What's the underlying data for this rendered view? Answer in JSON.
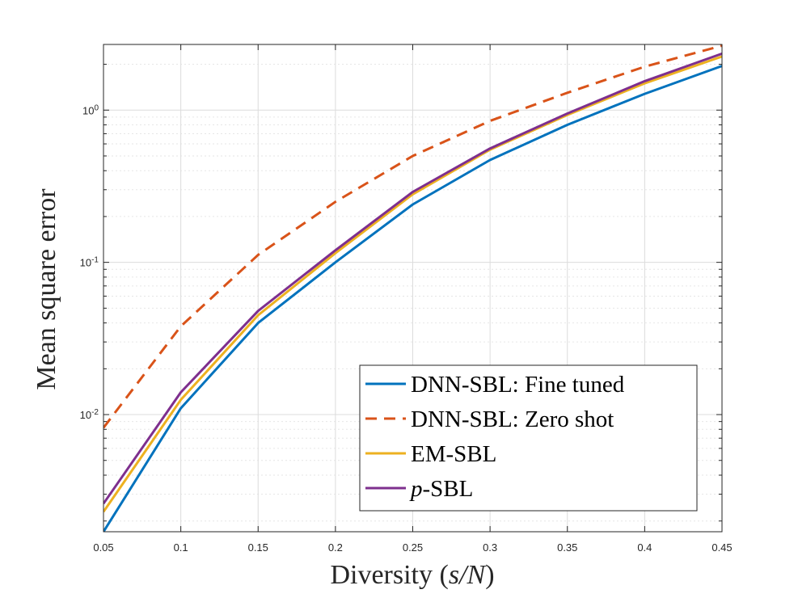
{
  "chart_data": {
    "type": "line",
    "title": "",
    "xlabel": "Diversity (s/N)",
    "ylabel": "Mean square error",
    "xscale": "linear",
    "yscale": "log",
    "xlim": [
      0.05,
      0.45
    ],
    "ylim": [
      0.0017,
      2.7
    ],
    "grid": true,
    "minor_grid": true,
    "x": [
      0.05,
      0.1,
      0.15,
      0.2,
      0.25,
      0.3,
      0.35,
      0.4,
      0.45
    ],
    "xticks": [
      "0.05",
      "0.1",
      "0.15",
      "0.2",
      "0.25",
      "0.3",
      "0.35",
      "0.4",
      "0.45"
    ],
    "yticks": [
      {
        "value": 0.01,
        "base": "10",
        "exp": "-2"
      },
      {
        "value": 0.1,
        "base": "10",
        "exp": "-1"
      },
      {
        "value": 1,
        "base": "10",
        "exp": "0"
      }
    ],
    "legend_position": "bottom-right",
    "series": [
      {
        "name": "DNN-SBL: Fine tuned",
        "color": "#0072BD",
        "style": "solid",
        "values": [
          0.0017,
          0.011,
          0.04,
          0.1,
          0.24,
          0.47,
          0.8,
          1.28,
          1.95
        ]
      },
      {
        "name": "DNN-SBL: Zero shot",
        "color": "#D95319",
        "style": "dashed",
        "values": [
          0.0082,
          0.038,
          0.112,
          0.25,
          0.5,
          0.85,
          1.3,
          1.93,
          2.65
        ]
      },
      {
        "name": "EM-SBL",
        "color": "#EDB120",
        "style": "solid",
        "values": [
          0.0023,
          0.0125,
          0.045,
          0.115,
          0.28,
          0.55,
          0.93,
          1.5,
          2.25
        ]
      },
      {
        "name": "p-SBL",
        "name_prefix_italic": "p",
        "name_rest": "-SBL",
        "color": "#7E2F8E",
        "style": "solid",
        "values": [
          0.0026,
          0.014,
          0.048,
          0.12,
          0.29,
          0.56,
          0.95,
          1.55,
          2.35
        ]
      }
    ]
  }
}
